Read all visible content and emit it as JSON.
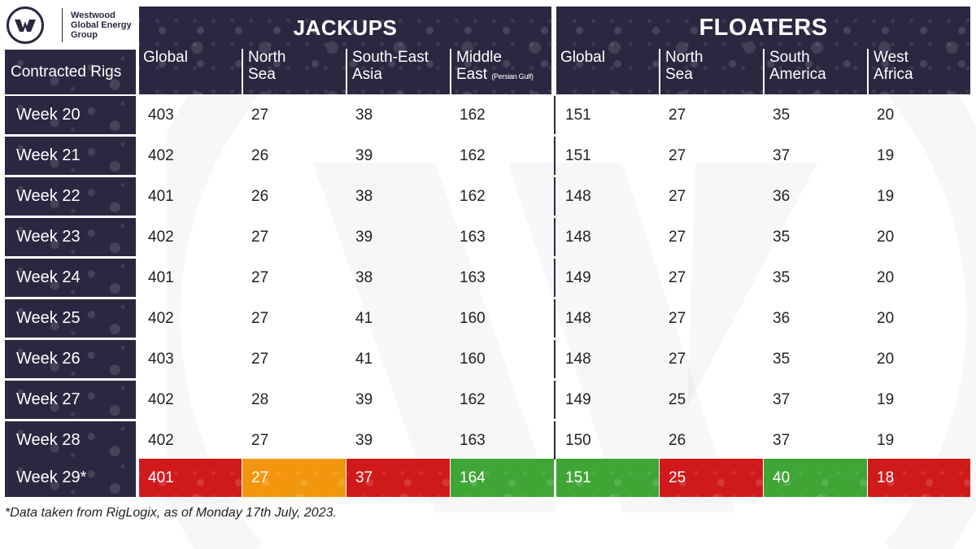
{
  "logo": {
    "lines": [
      "Westwood",
      "Global Energy",
      "Group"
    ]
  },
  "header": {
    "row_label": "Contracted Rigs",
    "groups": [
      {
        "title": "JACKUPS",
        "columns": [
          {
            "line1": "Global",
            "line2": "",
            "note": ""
          },
          {
            "line1": "North",
            "line2": "Sea",
            "note": ""
          },
          {
            "line1": "South-East",
            "line2": "Asia",
            "note": ""
          },
          {
            "line1": "Middle",
            "line2": "East",
            "note": "(Persian Gulf)"
          }
        ]
      },
      {
        "title": "FLOATERS",
        "columns": [
          {
            "line1": "Global",
            "line2": "",
            "note": ""
          },
          {
            "line1": "North",
            "line2": "Sea",
            "note": ""
          },
          {
            "line1": "South",
            "line2": "America",
            "note": ""
          },
          {
            "line1": "West",
            "line2": "Africa",
            "note": ""
          }
        ]
      }
    ]
  },
  "rows": [
    {
      "label": "Week 20",
      "values": [
        "403",
        "27",
        "38",
        "162",
        "151",
        "27",
        "35",
        "20"
      ]
    },
    {
      "label": "Week 21",
      "values": [
        "402",
        "26",
        "39",
        "162",
        "151",
        "27",
        "37",
        "19"
      ]
    },
    {
      "label": "Week 22",
      "values": [
        "401",
        "26",
        "38",
        "162",
        "148",
        "27",
        "36",
        "19"
      ]
    },
    {
      "label": "Week 23",
      "values": [
        "402",
        "27",
        "39",
        "163",
        "148",
        "27",
        "35",
        "20"
      ]
    },
    {
      "label": "Week 24",
      "values": [
        "401",
        "27",
        "38",
        "163",
        "149",
        "27",
        "35",
        "20"
      ]
    },
    {
      "label": "Week 25",
      "values": [
        "402",
        "27",
        "41",
        "160",
        "148",
        "27",
        "36",
        "20"
      ]
    },
    {
      "label": "Week 26",
      "values": [
        "403",
        "27",
        "41",
        "160",
        "148",
        "27",
        "35",
        "20"
      ]
    },
    {
      "label": "Week 27",
      "values": [
        "402",
        "28",
        "39",
        "162",
        "149",
        "25",
        "37",
        "19"
      ]
    },
    {
      "label": "Week 28",
      "values": [
        "402",
        "27",
        "39",
        "163",
        "150",
        "26",
        "37",
        "19"
      ]
    },
    {
      "label": "Week 29*",
      "values": [
        "401",
        "27",
        "37",
        "164",
        "151",
        "25",
        "40",
        "18"
      ],
      "highlight": [
        "red",
        "orange",
        "red",
        "green",
        "green",
        "red",
        "green",
        "red"
      ]
    }
  ],
  "colors": {
    "navy": "#2a2840",
    "red": "#d0191b",
    "orange": "#f2970d",
    "green": "#3fa535"
  },
  "footnote": "*Data taken from RigLogix, as of Monday 17th July, 2023."
}
